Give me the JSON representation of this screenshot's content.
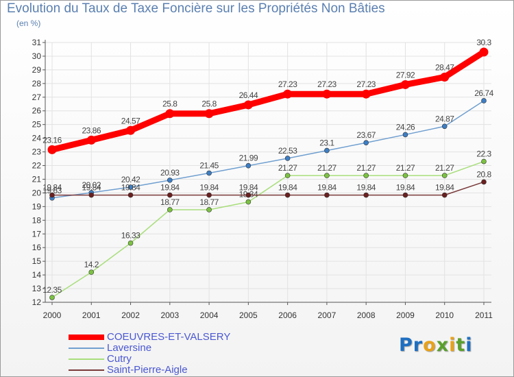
{
  "title": "Evolution du Taux de Taxe Foncière sur les Propriétés Non Bâties",
  "unit_label": "(en %)",
  "logo": {
    "letters": [
      {
        "ch": "P",
        "color": "#1e6fc1"
      },
      {
        "ch": "r",
        "color": "#1e6fc1"
      },
      {
        "ch": "o",
        "color": "#e8a21a"
      },
      {
        "ch": "x",
        "color": "#5aa02c"
      },
      {
        "ch": "i",
        "color": "#e8a21a"
      },
      {
        "ch": "t",
        "color": "#5aa02c"
      },
      {
        "ch": "i",
        "color": "#1e6fc1"
      }
    ]
  },
  "chart_data": {
    "type": "line",
    "title": "Evolution du Taux de Taxe Foncière sur les Propriétés Non Bâties",
    "ylabel": "(en %)",
    "xlabel": "",
    "x": [
      "2000",
      "2001",
      "2002",
      "2003",
      "2004",
      "2005",
      "2006",
      "2007",
      "2008",
      "2009",
      "2010",
      "2011"
    ],
    "ylim": [
      12,
      31
    ],
    "yticks": [
      12,
      13,
      14,
      15,
      16,
      17,
      18,
      19,
      20,
      21,
      22,
      23,
      24,
      25,
      26,
      27,
      28,
      29,
      30,
      31
    ],
    "grid": true,
    "legend_position": "bottom-left",
    "series": [
      {
        "name": "COEUVRES-ET-VALSERY",
        "color": "#ff0000",
        "marker_color": "#ff0000",
        "style": "thick",
        "values": [
          23.16,
          23.86,
          24.57,
          25.8,
          25.8,
          26.44,
          27.23,
          27.23,
          27.23,
          27.92,
          28.47,
          30.3
        ],
        "labels": [
          "23.16",
          "23.86",
          "24.57",
          "25.8",
          "25.8",
          "26.44",
          "27.23",
          "27.23",
          "27.23",
          "27.92",
          "28.47",
          "30.3"
        ]
      },
      {
        "name": "Laversine",
        "color": "#6f9fd0",
        "marker_color": "#3d7ec4",
        "style": "thin",
        "values": [
          19.63,
          20.02,
          20.42,
          20.93,
          21.45,
          21.99,
          22.53,
          23.1,
          23.67,
          24.26,
          24.87,
          26.74
        ],
        "labels": [
          "19.63",
          "20.02",
          "20.42",
          "20.93",
          "21.45",
          "21.99",
          "22.53",
          "23.1",
          "23.67",
          "24.26",
          "24.87",
          "26.74"
        ]
      },
      {
        "name": "Cutry",
        "color": "#a8de7a",
        "marker_color": "#7cc242",
        "style": "thin",
        "values": [
          12.35,
          14.2,
          16.33,
          18.77,
          18.77,
          19.34,
          21.27,
          21.27,
          21.27,
          21.27,
          21.27,
          22.3
        ],
        "labels": [
          "12.35",
          "14.2",
          "16.33",
          "18.77",
          "18.77",
          "19.34",
          "21.27",
          "21.27",
          "21.27",
          "21.27",
          "21.27",
          "22.3"
        ]
      },
      {
        "name": "Saint-Pierre-Aigle",
        "color": "#7a3a3a",
        "marker_color": "#6b2020",
        "style": "thin",
        "values": [
          19.84,
          19.84,
          19.84,
          19.84,
          19.84,
          19.84,
          19.84,
          19.84,
          19.84,
          19.84,
          19.84,
          20.8
        ],
        "labels": [
          "19.84",
          "19.84",
          "19.84",
          "19.84",
          "19.84",
          "19.84",
          "19.84",
          "19.84",
          "19.84",
          "19.84",
          "19.84",
          "20.8"
        ]
      }
    ]
  }
}
